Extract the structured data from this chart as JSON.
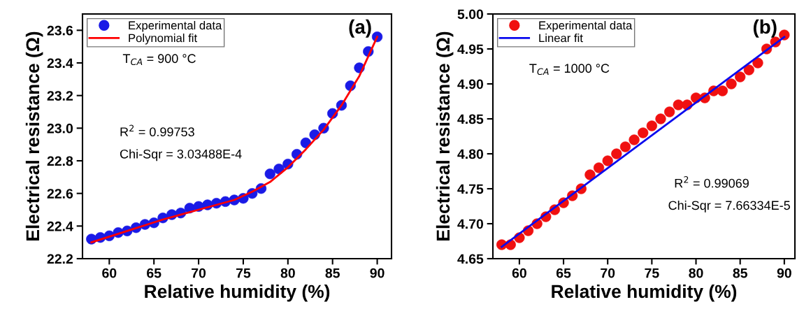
{
  "chart_data": [
    {
      "type": "scatter",
      "xlabel": "Relative humidity (%)",
      "ylabel": "Electrical resistance (Ω)",
      "xlim": [
        57,
        91.6
      ],
      "ylim": [
        22.2,
        23.7
      ],
      "xticks": [
        60,
        65,
        70,
        75,
        80,
        85,
        90
      ],
      "yticks": [
        {
          "value": 22.2,
          "label": "22.2"
        },
        22.4,
        22.6,
        22.8,
        {
          "value": 23.0,
          "label": "23.0"
        },
        23.2,
        23.4,
        23.6
      ],
      "legend": "top left",
      "grid": false,
      "annotations": [
        "(a)",
        "T$_{CA}$ = 900 °C",
        "R$^{2}$ = 0.99753",
        "Chi-Sqr = 3.03488E-4"
      ],
      "series": [
        {
          "name": "Experimental data",
          "marker": "circle",
          "color": "#1a1ae6",
          "x": [
            58,
            59,
            60,
            61,
            62,
            63,
            64,
            65,
            66,
            67,
            68,
            69,
            70,
            71,
            72,
            73,
            74,
            75,
            76,
            77,
            78,
            79,
            80,
            81,
            82,
            83,
            84,
            85,
            86,
            87,
            88,
            89,
            90
          ],
          "values": [
            22.32,
            22.33,
            22.34,
            22.36,
            22.37,
            22.39,
            22.41,
            22.42,
            22.45,
            22.47,
            22.48,
            22.51,
            22.52,
            22.53,
            22.54,
            22.55,
            22.56,
            22.57,
            22.6,
            22.63,
            22.72,
            22.75,
            22.78,
            22.84,
            22.91,
            22.96,
            23.0,
            23.09,
            23.14,
            23.26,
            23.37,
            23.47,
            23.56
          ]
        },
        {
          "name": "Polynomial fit",
          "type": "line",
          "line_style": "solid",
          "color": "#ff0000",
          "x": [
            58,
            62,
            66,
            70,
            74,
            76,
            78,
            80,
            82,
            84,
            86,
            88,
            90
          ],
          "values": [
            22.3,
            22.37,
            22.44,
            22.5,
            22.56,
            22.61,
            22.67,
            22.76,
            22.87,
            22.99,
            23.14,
            23.32,
            23.56
          ]
        }
      ]
    },
    {
      "type": "scatter",
      "xlabel": "Relative humidity (%)",
      "ylabel": "Electrical resistance (Ω)",
      "xlim": [
        57,
        91.2
      ],
      "ylim": [
        4.65,
        5.0
      ],
      "xticks": [
        60,
        65,
        70,
        75,
        80,
        85,
        90
      ],
      "yticks": [
        4.65,
        {
          "value": 4.7,
          "label": "4.70"
        },
        4.75,
        {
          "value": 4.8,
          "label": "4.80"
        },
        4.85,
        {
          "value": 4.9,
          "label": "4.90"
        },
        4.95,
        {
          "value": 5.0,
          "label": "5.00"
        }
      ],
      "legend": "top left",
      "grid": false,
      "annotations": [
        "(b)",
        "T$_{CA}$ = 1000 °C",
        "R$^{2}$ = 0.99069",
        "Chi-Sqr = 7.66334E-5"
      ],
      "series": [
        {
          "name": "Experimental data",
          "marker": "circle",
          "color": "#f01010",
          "x": [
            58,
            59,
            60,
            61,
            62,
            63,
            64,
            65,
            66,
            67,
            68,
            69,
            70,
            71,
            72,
            73,
            74,
            75,
            76,
            77,
            78,
            79,
            80,
            81,
            82,
            83,
            84,
            85,
            86,
            87,
            88,
            89,
            90
          ],
          "values": [
            4.67,
            4.67,
            4.68,
            4.69,
            4.7,
            4.71,
            4.72,
            4.73,
            4.74,
            4.75,
            4.77,
            4.78,
            4.79,
            4.8,
            4.81,
            4.82,
            4.83,
            4.84,
            4.85,
            4.86,
            4.87,
            4.87,
            4.88,
            4.88,
            4.89,
            4.89,
            4.9,
            4.91,
            4.92,
            4.93,
            4.95,
            4.96,
            4.97
          ]
        },
        {
          "name": "Linear fit",
          "type": "line",
          "line_style": "solid",
          "color": "#0a0aee",
          "x": [
            58,
            90
          ],
          "values": [
            4.667,
            4.967
          ]
        }
      ]
    }
  ]
}
